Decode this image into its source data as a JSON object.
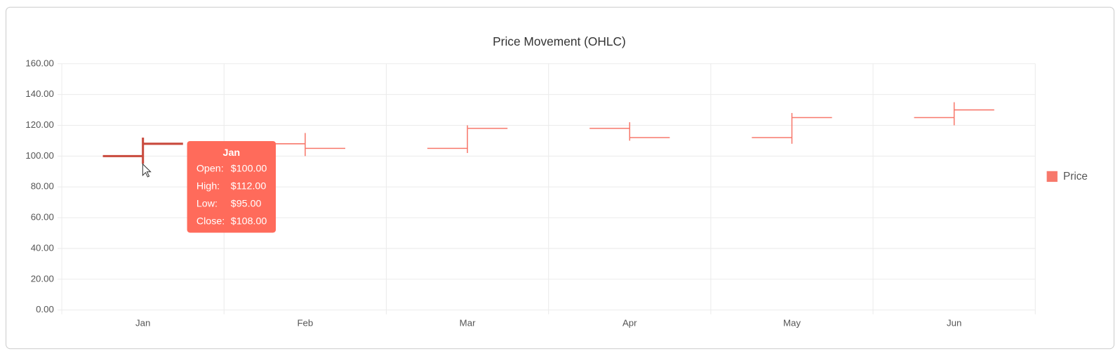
{
  "chart_data": {
    "type": "ohlc",
    "title": "Price Movement (OHLC)",
    "categories": [
      "Jan",
      "Feb",
      "Mar",
      "Apr",
      "May",
      "Jun"
    ],
    "series": [
      {
        "name": "Price",
        "color": "#f7786b",
        "open": [
          100,
          108,
          105,
          118,
          112,
          125
        ],
        "high": [
          112,
          115,
          120,
          122,
          128,
          135
        ],
        "low": [
          95,
          100,
          102,
          110,
          108,
          120
        ],
        "close": [
          108,
          105,
          118,
          112,
          125,
          130
        ]
      }
    ],
    "ylim": [
      0,
      160
    ],
    "yticks": [
      {
        "value": 0,
        "label": "0.00"
      },
      {
        "value": 20,
        "label": "20.00"
      },
      {
        "value": 40,
        "label": "40.00"
      },
      {
        "value": 60,
        "label": "60.00"
      },
      {
        "value": 80,
        "label": "80.00"
      },
      {
        "value": 100,
        "label": "100.00"
      },
      {
        "value": 120,
        "label": "120.00"
      },
      {
        "value": 140,
        "label": "140.00"
      },
      {
        "value": 160,
        "label": "160.00"
      }
    ],
    "grid": true,
    "legend": "right",
    "tooltip": {
      "title": "Jan",
      "rows": [
        {
          "label": "Open:",
          "value": "$100.00"
        },
        {
          "label": "High:",
          "value": "$112.00"
        },
        {
          "label": "Low:",
          "value": "$95.00"
        },
        {
          "label": "Close:",
          "value": "$108.00"
        }
      ]
    }
  }
}
